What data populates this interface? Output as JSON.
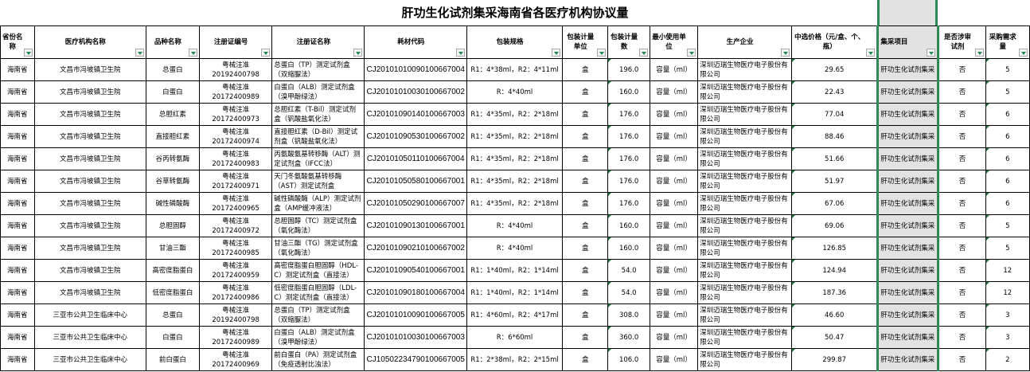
{
  "title": "肝功生化试剂集采海南省各医疗机构协议量",
  "headers": [
    "省份名称",
    "医疗机构名称",
    "品种名称",
    "注册证编号",
    "注册证名称",
    "耗材代码",
    "包装规格",
    "包装计量单位",
    "包装计量数",
    "最小使用单位",
    "生产企业",
    "中选价格（元/盒、个、瓶）",
    "集采项目",
    "是否涉审试剂",
    "采购需求量"
  ],
  "rows": [
    [
      "海南省",
      "文昌市冯坡镇卫生院",
      "总蛋白",
      "粤械注准 20192400798",
      "总蛋白（TP）测定试剂盒（双缩脲法）",
      "CJ20101010090100667004",
      "R1：4*38ml，R2：4*11ml",
      "盒",
      "196.0",
      "容量（ml）",
      "深圳迈瑞生物医疗电子股份有限公司",
      "29.65",
      "肝功生化试剂集采",
      "否",
      "5"
    ],
    [
      "海南省",
      "文昌市冯坡镇卫生院",
      "白蛋白",
      "粤械注准 20172400989",
      "白蛋白（ALB）测定试剂盒（溴甲酚绿法）",
      "CJ20101010030100667002",
      "R：4*40ml",
      "盒",
      "160.0",
      "容量（ml）",
      "深圳迈瑞生物医疗电子股份有限公司",
      "22.43",
      "肝功生化试剂集采",
      "否",
      "5"
    ],
    [
      "海南省",
      "文昌市冯坡镇卫生院",
      "总胆红素",
      "粤械注准 20172400973",
      "总胆红素（T-Bil）测定试剂盒（钒酸盐氧化法）",
      "CJ20101090140100667003",
      "R1：4*35ml，R2：2*18ml",
      "盒",
      "176.0",
      "容量（ml）",
      "深圳迈瑞生物医疗电子股份有限公司",
      "77.04",
      "肝功生化试剂集采",
      "否",
      "6"
    ],
    [
      "海南省",
      "文昌市冯坡镇卫生院",
      "直接胆红素",
      "粤械注准 20172400974",
      "直接胆红素（D-Bil）测定试剂盒（钒酸盐氧化法）",
      "CJ20101090530100667002",
      "R1：4*35ml，R2：2*18ml",
      "盒",
      "176.0",
      "容量（ml）",
      "深圳迈瑞生物医疗电子股份有限公司",
      "88.46",
      "肝功生化试剂集采",
      "否",
      "6"
    ],
    [
      "海南省",
      "文昌市冯坡镇卫生院",
      "谷丙转氨酶",
      "粤械注准 20172400983",
      "丙氨酸氨基转移酶（ALT）测定试剂盒（IFCC法）",
      "CJ20101050110100667004",
      "R1：4*35ml，R2：2*18ml",
      "盒",
      "176.0",
      "容量（ml）",
      "深圳迈瑞生物医疗电子股份有限公司",
      "51.66",
      "肝功生化试剂集采",
      "否",
      "6"
    ],
    [
      "海南省",
      "文昌市冯坡镇卫生院",
      "谷草转氨酶",
      "粤械注准 20172400971",
      "天门冬氨酸氨基转移酶（AST）测定试剂盒",
      "CJ20101050580100667001",
      "R1：4*35ml，R2：2*18ml",
      "盒",
      "176.0",
      "容量（ml）",
      "深圳迈瑞生物医疗电子股份有限公司",
      "51.97",
      "肝功生化试剂集采",
      "否",
      "6"
    ],
    [
      "海南省",
      "文昌市冯坡镇卫生院",
      "碱性磷酸酶",
      "粤械注准 20172400965",
      "碱性磷酸酶（ALP）测定试剂盒（AMP缓冲液法）",
      "CJ20101050290100667007",
      "R1：4*35ml，R2：2*18ml",
      "盒",
      "176.0",
      "容量（ml）",
      "深圳迈瑞生物医疗电子股份有限公司",
      "67.06",
      "肝功生化试剂集采",
      "否",
      "6"
    ],
    [
      "海南省",
      "文昌市冯坡镇卫生院",
      "总胆固醇",
      "粤械注准 20172400972",
      "总胆固醇（TC）测定试剂盒（氧化酶法）",
      "CJ20101090130100667001",
      "R：4*40ml",
      "盒",
      "160.0",
      "容量（ml）",
      "深圳迈瑞生物医疗电子股份有限公司",
      "69.06",
      "肝功生化试剂集采",
      "否",
      "5"
    ],
    [
      "海南省",
      "文昌市冯坡镇卫生院",
      "甘油三酯",
      "粤械注准 20172400985",
      "甘油三酯（TG）测定试剂盒（氧化酶法）",
      "CJ20101090210100667002",
      "R：4*40ml",
      "盒",
      "160.0",
      "容量（ml）",
      "深圳迈瑞生物医疗电子股份有限公司",
      "126.85",
      "肝功生化试剂集采",
      "否",
      "5"
    ],
    [
      "海南省",
      "文昌市冯坡镇卫生院",
      "高密度脂蛋白",
      "粤械注准 20172400959",
      "高密度脂蛋白胆固醇（HDL-C）测定试剂盒（直接法）",
      "CJ20101090540100667001",
      "R1：1*40ml，R2：1*14ml",
      "盒",
      "54.0",
      "容量（ml）",
      "深圳迈瑞生物医疗电子股份有限公司",
      "124.94",
      "肝功生化试剂集采",
      "否",
      "12"
    ],
    [
      "海南省",
      "文昌市冯坡镇卫生院",
      "低密度脂蛋白",
      "粤械注准 20172400986",
      "低密度脂蛋白胆固醇（LDL-C）测定试剂盒（直接法）",
      "CJ20101090180100667004",
      "R1：1*40ml，R2：1*14ml",
      "盒",
      "54.0",
      "容量（ml）",
      "深圳迈瑞生物医疗电子股份有限公司",
      "187.36",
      "肝功生化试剂集采",
      "否",
      "12"
    ],
    [
      "海南省",
      "三亚市公共卫生临床中心",
      "总蛋白",
      "粤械注准 20192400798",
      "总蛋白（TP）测定试剂盒（双缩脲法）",
      "CJ20101010090100667005",
      "R1：4*60ml，R2：4*17ml",
      "盒",
      "308.0",
      "容量（ml）",
      "深圳迈瑞生物医疗电子股份有限公司",
      "46.60",
      "肝功生化试剂集采",
      "否",
      "3"
    ],
    [
      "海南省",
      "三亚市公共卫生临床中心",
      "白蛋白",
      "粤械注准 20172400989",
      "白蛋白（ALB）测定试剂盒（溴甲酚绿法）",
      "CJ20101010030100667003",
      "R：6*60ml",
      "盒",
      "360.0",
      "容量（ml）",
      "深圳迈瑞生物医疗电子股份有限公司",
      "50.47",
      "肝功生化试剂集采",
      "否",
      "3"
    ],
    [
      "海南省",
      "三亚市公共卫生临床中心",
      "前白蛋白",
      "粤械注准 20172400969",
      "前白蛋白（PA）测定试剂盒（免疫透射比浊法）",
      "CJ10502234790100667005",
      "R1：2*38ml，R2：2*15ml",
      "盒",
      "106.0",
      "容量（ml）",
      "深圳迈瑞生物医疗电子股份有限公司",
      "299.87",
      "肝功生化试剂集采",
      "否",
      "2"
    ]
  ],
  "colors": {
    "selected_column_bg": "#e2e2e2",
    "selection_border": "#2e8b57",
    "filter_arrow": "#1e8a50"
  }
}
